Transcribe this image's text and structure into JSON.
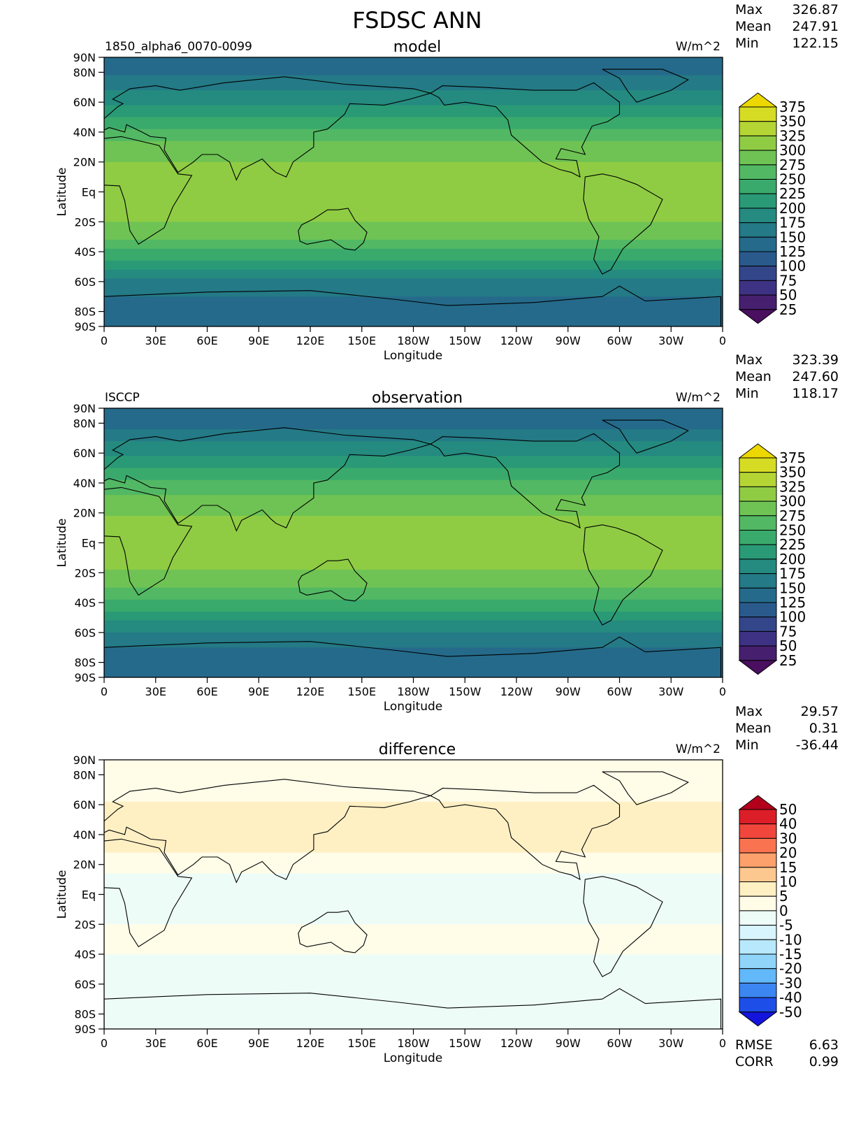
{
  "figure_title": "FSDSC ANN",
  "chart_data": [
    {
      "type": "heatmap",
      "id": "model",
      "title": "model",
      "left_label": "1850_alpha6_0070-0099",
      "units": "W/m^2",
      "xlabel": "Longitude",
      "ylabel": "Latitude",
      "xticks": [
        "0",
        "30E",
        "60E",
        "90E",
        "120E",
        "150E",
        "180W",
        "150W",
        "120W",
        "90W",
        "60W",
        "30W",
        "0"
      ],
      "yticks": [
        "90N",
        "80N",
        "60N",
        "40N",
        "20N",
        "Eq",
        "20S",
        "40S",
        "60S",
        "80S",
        "90S"
      ],
      "stats": [
        {
          "label": "Max",
          "value": "326.87"
        },
        {
          "label": "Mean",
          "value": "247.91"
        },
        {
          "label": "Min",
          "value": "122.15"
        }
      ],
      "colorbar_levels": [
        "375",
        "350",
        "325",
        "300",
        "275",
        "250",
        "225",
        "200",
        "175",
        "150",
        "125",
        "100",
        "75",
        "50",
        "25"
      ],
      "colorbar_colors": [
        "#ecd800",
        "#d6dc24",
        "#b4d534",
        "#8fcc44",
        "#6ec354",
        "#52b864",
        "#3aaa6c",
        "#2a9a76",
        "#258a80",
        "#247a86",
        "#256a8a",
        "#2a5a8c",
        "#34468a",
        "#3e3284",
        "#46206e",
        "#4a0f5e"
      ],
      "zonal_profile": [
        {
          "lat": 90,
          "value": 130
        },
        {
          "lat": 80,
          "value": 145
        },
        {
          "lat": 70,
          "value": 170
        },
        {
          "lat": 60,
          "value": 195
        },
        {
          "lat": 50,
          "value": 225
        },
        {
          "lat": 40,
          "value": 260
        },
        {
          "lat": 30,
          "value": 285
        },
        {
          "lat": 20,
          "value": 300
        },
        {
          "lat": 10,
          "value": 310
        },
        {
          "lat": 0,
          "value": 315
        },
        {
          "lat": -10,
          "value": 310
        },
        {
          "lat": -20,
          "value": 300
        },
        {
          "lat": -30,
          "value": 280
        },
        {
          "lat": -40,
          "value": 245
        },
        {
          "lat": -50,
          "value": 205
        },
        {
          "lat": -60,
          "value": 170
        },
        {
          "lat": -70,
          "value": 150
        },
        {
          "lat": -80,
          "value": 140
        },
        {
          "lat": -90,
          "value": 130
        }
      ]
    },
    {
      "type": "heatmap",
      "id": "observation",
      "title": "observation",
      "left_label": "ISCCP",
      "units": "W/m^2",
      "xlabel": "Longitude",
      "ylabel": "Latitude",
      "xticks": [
        "0",
        "30E",
        "60E",
        "90E",
        "120E",
        "150E",
        "180W",
        "150W",
        "120W",
        "90W",
        "60W",
        "30W",
        "0"
      ],
      "yticks": [
        "90N",
        "80N",
        "60N",
        "40N",
        "20N",
        "Eq",
        "20S",
        "40S",
        "60S",
        "80S",
        "90S"
      ],
      "stats": [
        {
          "label": "Max",
          "value": "323.39"
        },
        {
          "label": "Mean",
          "value": "247.60"
        },
        {
          "label": "Min",
          "value": "118.17"
        }
      ],
      "colorbar_levels": [
        "375",
        "350",
        "325",
        "300",
        "275",
        "250",
        "225",
        "200",
        "175",
        "150",
        "125",
        "100",
        "75",
        "50",
        "25"
      ],
      "colorbar_colors": [
        "#ecd800",
        "#d6dc24",
        "#b4d534",
        "#8fcc44",
        "#6ec354",
        "#52b864",
        "#3aaa6c",
        "#2a9a76",
        "#258a80",
        "#247a86",
        "#256a8a",
        "#2a5a8c",
        "#34468a",
        "#3e3284",
        "#46206e",
        "#4a0f5e"
      ],
      "zonal_profile": [
        {
          "lat": 90,
          "value": 128
        },
        {
          "lat": 80,
          "value": 142
        },
        {
          "lat": 70,
          "value": 168
        },
        {
          "lat": 60,
          "value": 192
        },
        {
          "lat": 50,
          "value": 222
        },
        {
          "lat": 40,
          "value": 255
        },
        {
          "lat": 30,
          "value": 280
        },
        {
          "lat": 20,
          "value": 298
        },
        {
          "lat": 10,
          "value": 308
        },
        {
          "lat": 0,
          "value": 312
        },
        {
          "lat": -10,
          "value": 308
        },
        {
          "lat": -20,
          "value": 298
        },
        {
          "lat": -30,
          "value": 278
        },
        {
          "lat": -40,
          "value": 245
        },
        {
          "lat": -50,
          "value": 205
        },
        {
          "lat": -60,
          "value": 172
        },
        {
          "lat": -70,
          "value": 150
        },
        {
          "lat": -80,
          "value": 140
        },
        {
          "lat": -90,
          "value": 130
        }
      ]
    },
    {
      "type": "heatmap",
      "id": "difference",
      "title": "difference",
      "left_label": "",
      "units": "W/m^2",
      "xlabel": "Longitude",
      "ylabel": "Latitude",
      "xticks": [
        "0",
        "30E",
        "60E",
        "90E",
        "120E",
        "150E",
        "180W",
        "150W",
        "120W",
        "90W",
        "60W",
        "30W",
        "0"
      ],
      "yticks": [
        "90N",
        "80N",
        "60N",
        "40N",
        "20N",
        "Eq",
        "20S",
        "40S",
        "60S",
        "80S",
        "90S"
      ],
      "stats": [
        {
          "label": "Max",
          "value": "29.57"
        },
        {
          "label": "Mean",
          "value": "0.31"
        },
        {
          "label": "Min",
          "value": "-36.44"
        }
      ],
      "footer_stats": [
        {
          "label": "RMSE",
          "value": "6.63"
        },
        {
          "label": "CORR",
          "value": "0.99"
        }
      ],
      "colorbar_levels": [
        "50",
        "40",
        "30",
        "20",
        "15",
        "10",
        "5",
        "0",
        "-5",
        "-10",
        "-15",
        "-20",
        "-30",
        "-40",
        "-50"
      ],
      "colorbar_colors": [
        "#b2001c",
        "#dc1e28",
        "#f0463c",
        "#fa7350",
        "#fca06c",
        "#fdc890",
        "#fff0c4",
        "#fffce8",
        "#eefcf8",
        "#d8f4fc",
        "#b8e8fc",
        "#90d4fa",
        "#62b8f8",
        "#3c86f2",
        "#1e4ee8",
        "#1414dc"
      ],
      "zonal_profile": [
        {
          "lat": 90,
          "value": 0
        },
        {
          "lat": 70,
          "value": 3
        },
        {
          "lat": 50,
          "value": 8
        },
        {
          "lat": 40,
          "value": 10
        },
        {
          "lat": 30,
          "value": 6
        },
        {
          "lat": 20,
          "value": 2
        },
        {
          "lat": 10,
          "value": -2
        },
        {
          "lat": 0,
          "value": -4
        },
        {
          "lat": -10,
          "value": -2
        },
        {
          "lat": -20,
          "value": 0
        },
        {
          "lat": -40,
          "value": 0
        },
        {
          "lat": -60,
          "value": -1
        },
        {
          "lat": -70,
          "value": -4
        },
        {
          "lat": -90,
          "value": 0
        }
      ]
    }
  ]
}
